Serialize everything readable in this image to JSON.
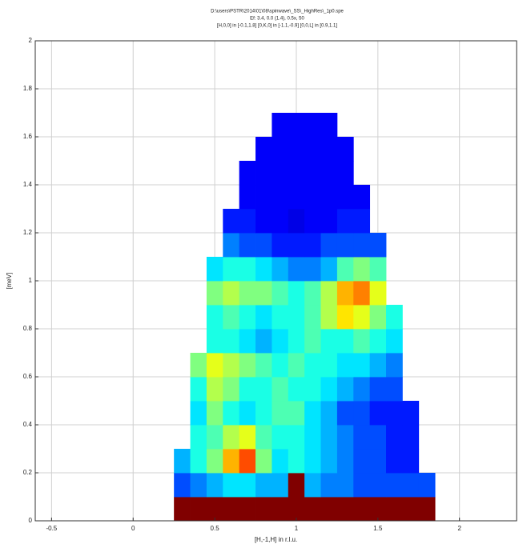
{
  "chart_data": {
    "type": "heatmap",
    "title": [
      "D:\\users\\PSTR\\2014\\01\\08\\spinwave\\_SS\\_HighRes\\_1p0.spe",
      "Ef: 3.4, 0.0 (1.4), 0.5x, 50",
      "[H,0,0] in [-0.1,1.8] [0,K,0] in [-1.1,-0.9] [0,0,L] in [0.9,1.1]"
    ],
    "xlabel": "[H,-1,H] in r.l.u.",
    "ylabel": "[meV]",
    "xlim": [
      -0.6,
      2.35
    ],
    "ylim": [
      0,
      2
    ],
    "xticks": [
      -0.5,
      0,
      0.5,
      1,
      1.5,
      2
    ],
    "yticks": [
      0,
      0.2,
      0.4,
      0.6,
      0.8,
      1,
      1.2,
      1.4,
      1.6,
      1.8,
      2
    ],
    "grid": true,
    "colormap": "jet",
    "clim": [
      0,
      1
    ],
    "x": [
      0.3,
      0.4,
      0.5,
      0.6,
      0.7,
      0.8,
      0.9,
      1.0,
      1.1,
      1.2,
      1.3,
      1.4,
      1.5,
      1.6,
      1.7,
      1.8
    ],
    "y": [
      0.05,
      0.15,
      0.25,
      0.35,
      0.45,
      0.55,
      0.65,
      0.75,
      0.85,
      0.95,
      1.05,
      1.15,
      1.25,
      1.35,
      1.45,
      1.55,
      1.65
    ],
    "z": [
      [
        1,
        1,
        1,
        1,
        1,
        1,
        1,
        1,
        1,
        1,
        1,
        1,
        1,
        1,
        1,
        1
      ],
      [
        0.2,
        0.25,
        0.3,
        0.35,
        0.35,
        0.3,
        0.3,
        1,
        0.3,
        0.25,
        0.25,
        0.2,
        0.2,
        0.2,
        0.2,
        0.2
      ],
      [
        0.3,
        0.4,
        0.5,
        0.7,
        0.8,
        0.5,
        0.35,
        0.4,
        0.35,
        0.3,
        0.25,
        0.2,
        0.2,
        0.15,
        0.15,
        null
      ],
      [
        null,
        0.4,
        0.45,
        0.55,
        0.6,
        0.45,
        0.4,
        0.4,
        0.35,
        0.3,
        0.25,
        0.2,
        0.2,
        0.15,
        0.15,
        null
      ],
      [
        null,
        0.35,
        0.5,
        0.4,
        0.35,
        0.4,
        0.45,
        0.45,
        0.35,
        0.3,
        0.2,
        0.2,
        0.15,
        0.15,
        0.15,
        null
      ],
      [
        null,
        0.4,
        0.55,
        0.5,
        0.4,
        0.4,
        0.45,
        0.4,
        0.4,
        0.35,
        0.3,
        0.25,
        0.2,
        0.2,
        null,
        null
      ],
      [
        null,
        0.5,
        0.6,
        0.55,
        0.5,
        0.45,
        0.4,
        0.45,
        0.4,
        0.4,
        0.35,
        0.35,
        0.3,
        0.25,
        null,
        null
      ],
      [
        null,
        null,
        0.4,
        0.4,
        0.35,
        0.3,
        0.35,
        0.4,
        0.45,
        0.4,
        0.4,
        0.45,
        0.4,
        0.35,
        null,
        null
      ],
      [
        null,
        null,
        0.4,
        0.45,
        0.4,
        0.35,
        0.4,
        0.4,
        0.45,
        0.55,
        0.65,
        0.6,
        0.5,
        0.4,
        null,
        null
      ],
      [
        null,
        null,
        0.5,
        0.55,
        0.5,
        0.5,
        0.45,
        0.4,
        0.45,
        0.55,
        0.7,
        0.75,
        0.6,
        null,
        null,
        null
      ],
      [
        null,
        null,
        0.35,
        0.4,
        0.4,
        0.35,
        0.3,
        0.25,
        0.25,
        0.3,
        0.45,
        0.5,
        0.45,
        null,
        null,
        null
      ],
      [
        null,
        null,
        null,
        0.25,
        0.2,
        0.2,
        0.15,
        0.15,
        0.15,
        0.2,
        0.2,
        0.2,
        0.2,
        null,
        null,
        null
      ],
      [
        null,
        null,
        null,
        0.15,
        0.15,
        0.12,
        0.12,
        0.1,
        0.12,
        0.12,
        0.15,
        0.15,
        null,
        null,
        null,
        null
      ],
      [
        null,
        null,
        null,
        null,
        0.12,
        0.12,
        0.12,
        0.12,
        0.12,
        0.12,
        0.12,
        0.12,
        null,
        null,
        null,
        null
      ],
      [
        null,
        null,
        null,
        null,
        0.12,
        0.12,
        0.12,
        0.12,
        0.12,
        0.12,
        0.12,
        null,
        null,
        null,
        null,
        null
      ],
      [
        null,
        null,
        null,
        null,
        null,
        0.12,
        0.12,
        0.12,
        0.12,
        0.12,
        0.12,
        null,
        null,
        null,
        null,
        null
      ],
      [
        null,
        null,
        null,
        null,
        null,
        null,
        0.12,
        0.12,
        0.12,
        0.12,
        null,
        null,
        null,
        null,
        null,
        null
      ]
    ]
  }
}
